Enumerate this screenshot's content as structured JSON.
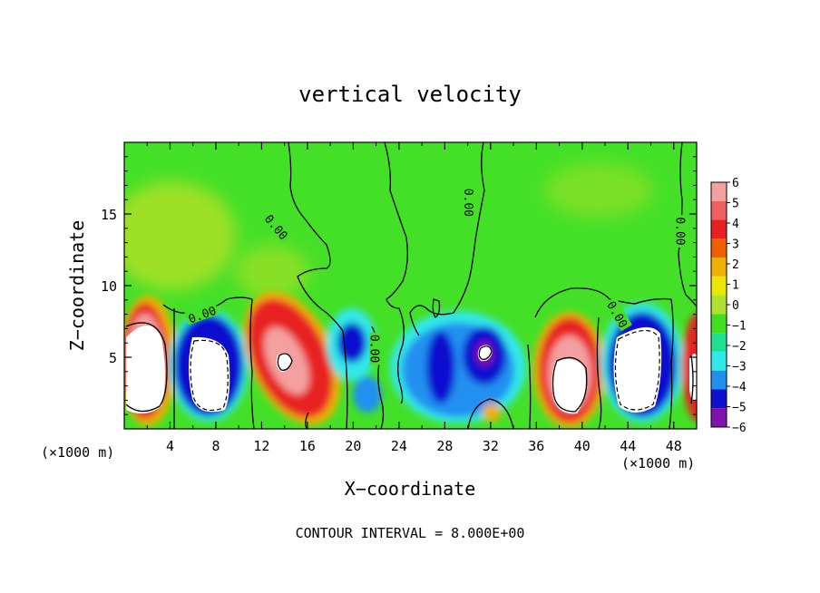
{
  "chart_data": {
    "type": "heatmap",
    "title": "vertical velocity",
    "xlabel": "X−coordinate",
    "ylabel": "Z−coordinate",
    "x_unit_left": "(×1000 m)",
    "x_unit_right": "(×1000 m)",
    "footer": "CONTOUR INTERVAL = 8.000E+00",
    "xlim": [
      0,
      50
    ],
    "ylim": [
      0,
      20
    ],
    "x_ticks": [
      4,
      8,
      12,
      16,
      20,
      24,
      28,
      32,
      36,
      40,
      44,
      48
    ],
    "x_tick_labels": [
      "4",
      "8",
      "12",
      "16",
      "20",
      "24",
      "28",
      "32",
      "36",
      "40",
      "44",
      "48"
    ],
    "y_ticks": [
      5,
      10,
      15
    ],
    "y_tick_labels": [
      "5",
      "10",
      "15"
    ],
    "colorbar": {
      "levels": [
        6,
        5,
        4,
        3,
        2,
        1,
        0,
        -1,
        -2,
        -3,
        -4,
        -5,
        -6
      ],
      "labels": [
        "6",
        "5",
        "4",
        "3",
        "2",
        "1",
        "0",
        "−1",
        "−2",
        "−3",
        "−4",
        "−5",
        "−6"
      ],
      "colors": [
        "#f4a0a0",
        "#f06060",
        "#e82020",
        "#f06000",
        "#f0b000",
        "#e8e800",
        "#b0e030",
        "#40e020",
        "#20e090",
        "#30e8e8",
        "#2090f0",
        "#1010d0",
        "#8010b0"
      ]
    },
    "contour_labels": [
      {
        "text": "0.00",
        "x": 13.3,
        "y": 14.1,
        "rot": 50
      },
      {
        "text": "0.00",
        "x": 6.8,
        "y": 8.0,
        "rot": -20
      },
      {
        "text": "0.00",
        "x": 21.9,
        "y": 5.6,
        "rot": 90
      },
      {
        "text": "0.00",
        "x": 30.1,
        "y": 15.8,
        "rot": 90
      },
      {
        "text": "0.00",
        "x": 43.1,
        "y": 8.0,
        "rot": 60
      },
      {
        "text": "0.00",
        "x": 48.6,
        "y": 13.8,
        "rot": 90
      }
    ],
    "features": [
      {
        "kind": "updraft",
        "x": 2.5,
        "z": 4.5,
        "peak": 8
      },
      {
        "kind": "downdraft",
        "x": 7.5,
        "z": 4.5,
        "peak": -8
      },
      {
        "kind": "updraft",
        "x": 14.5,
        "z": 5.0,
        "peak": 7
      },
      {
        "kind": "downdraft",
        "x": 19.5,
        "z": 6.0,
        "peak": -5
      },
      {
        "kind": "downdraft",
        "x": 27.5,
        "z": 5.0,
        "peak": -5
      },
      {
        "kind": "downdraft",
        "x": 31.5,
        "z": 5.2,
        "peak": -6
      },
      {
        "kind": "updraft",
        "x": 39.0,
        "z": 4.0,
        "peak": 8
      },
      {
        "kind": "downdraft",
        "x": 44.5,
        "z": 4.0,
        "peak": -8
      },
      {
        "kind": "updraft",
        "x": 49.7,
        "z": 4.0,
        "peak": 7
      }
    ]
  }
}
